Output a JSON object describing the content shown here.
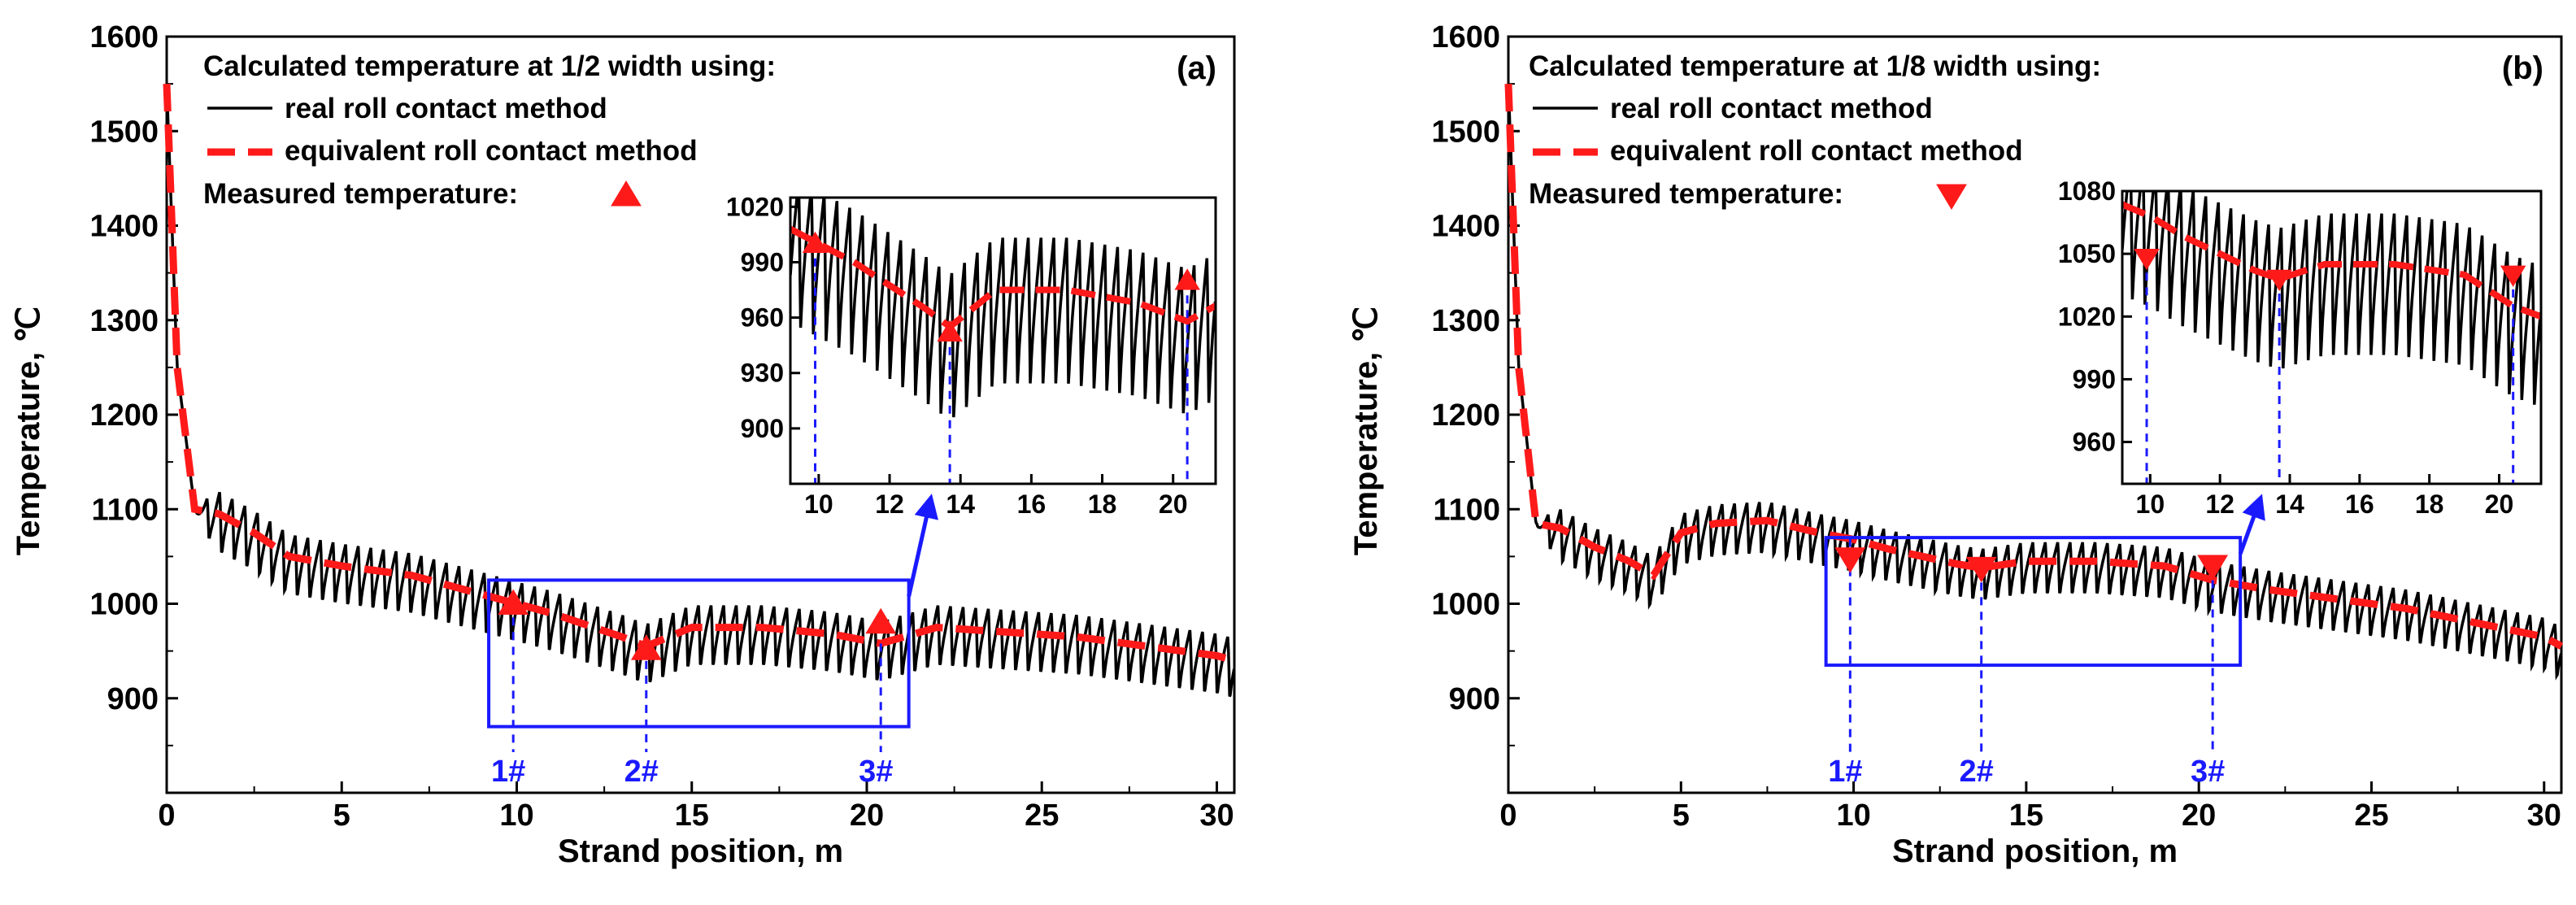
{
  "chart_data": [
    {
      "type": "line",
      "panel": "(a)",
      "xlabel": "Strand position, m",
      "ylabel": "Temperature, ℃",
      "xlim": [
        0,
        30.5
      ],
      "ylim": [
        800,
        1600
      ],
      "xticks": [
        0,
        5,
        10,
        15,
        20,
        25,
        30
      ],
      "yticks": [
        900,
        1000,
        1100,
        1200,
        1300,
        1400,
        1500,
        1600
      ],
      "legend": {
        "title": "Calculated temperature at 1/2 width using:",
        "real": "real roll contact method",
        "equivalent": "equivalent roll contact method",
        "measured": "Measured temperature:"
      },
      "series": [
        {
          "name": "real roll contact method",
          "color": "#000000",
          "style": "solid",
          "x": [
            0,
            0.3,
            0.8,
            1.5,
            2.5,
            3.5,
            5,
            7,
            9,
            11,
            13,
            13.7,
            15,
            17,
            19,
            20.4,
            22,
            24,
            26,
            28,
            30,
            30.5
          ],
          "y": [
            1550,
            1250,
            1100,
            1095,
            1075,
            1050,
            1040,
            1030,
            1010,
            990,
            965,
            955,
            975,
            975,
            968,
            958,
            975,
            970,
            965,
            955,
            945,
            940
          ],
          "oscillation_amplitude": 70
        },
        {
          "name": "equivalent roll contact method",
          "color": "#ff1a1a",
          "style": "dashed",
          "x": [
            0,
            0.3,
            0.8,
            1.5,
            2.5,
            3.5,
            5,
            7,
            9,
            11,
            13,
            13.7,
            15,
            17,
            19,
            20.4,
            22,
            24,
            26,
            28,
            30,
            30.5
          ],
          "y": [
            1550,
            1250,
            1100,
            1095,
            1075,
            1050,
            1040,
            1030,
            1010,
            990,
            965,
            955,
            975,
            975,
            968,
            958,
            975,
            970,
            965,
            955,
            945,
            940
          ]
        },
        {
          "name": "Measured temperature",
          "type": "scatter",
          "marker": "triangle-up",
          "color": "#ff1a1a",
          "x": [
            9.9,
            13.7,
            20.4
          ],
          "y": [
            1000,
            952,
            980
          ]
        }
      ],
      "annotations": [
        {
          "text": "1#",
          "x": 9.9
        },
        {
          "text": "2#",
          "x": 13.7
        },
        {
          "text": "3#",
          "x": 20.4
        }
      ],
      "zoom_box": {
        "xlim": [
          9.2,
          21.2
        ],
        "ylim": [
          870,
          1025
        ]
      },
      "inset": {
        "xlim": [
          9.2,
          21.2
        ],
        "ylim": [
          870,
          1025
        ],
        "xticks": [
          10,
          12,
          14,
          16,
          18,
          20
        ],
        "yticks": [
          900,
          930,
          960,
          990,
          1020
        ]
      }
    },
    {
      "type": "line",
      "panel": "(b)",
      "xlabel": "Strand position, m",
      "ylabel": "Temperature, ℃",
      "xlim": [
        0,
        30.5
      ],
      "ylim": [
        800,
        1600
      ],
      "xticks": [
        0,
        5,
        10,
        15,
        20,
        25,
        30
      ],
      "yticks": [
        900,
        1000,
        1100,
        1200,
        1300,
        1400,
        1500,
        1600
      ],
      "legend": {
        "title": "Calculated temperature at 1/8 width using:",
        "real": "real roll contact method",
        "equivalent": "equivalent roll contact method",
        "measured": "Measured temperature:"
      },
      "series": [
        {
          "name": "real roll contact method",
          "color": "#000000",
          "style": "solid",
          "x": [
            0,
            0.3,
            0.8,
            1.5,
            2.5,
            3.5,
            4.2,
            5,
            6,
            7.5,
            9,
            10,
            11,
            13,
            13.7,
            15,
            17,
            19,
            20.4,
            22,
            24,
            26,
            28,
            30,
            30.5
          ],
          "y": [
            1550,
            1250,
            1085,
            1080,
            1060,
            1045,
            1030,
            1075,
            1085,
            1088,
            1075,
            1068,
            1058,
            1042,
            1038,
            1045,
            1045,
            1040,
            1025,
            1015,
            1005,
            995,
            980,
            965,
            955
          ],
          "oscillation_amplitude": 60
        },
        {
          "name": "equivalent roll contact method",
          "color": "#ff1a1a",
          "style": "dashed",
          "x": [
            0,
            0.3,
            0.8,
            1.5,
            2.5,
            3.5,
            4.2,
            5,
            6,
            7.5,
            9,
            10,
            11,
            13,
            13.7,
            15,
            17,
            19,
            20.4,
            22,
            24,
            26,
            28,
            30,
            30.5
          ],
          "y": [
            1550,
            1250,
            1085,
            1080,
            1060,
            1045,
            1030,
            1075,
            1085,
            1088,
            1075,
            1068,
            1058,
            1042,
            1038,
            1045,
            1045,
            1040,
            1025,
            1015,
            1005,
            995,
            980,
            965,
            955
          ]
        },
        {
          "name": "Measured temperature",
          "type": "scatter",
          "marker": "triangle-down",
          "color": "#ff1a1a",
          "x": [
            9.9,
            13.7,
            20.4
          ],
          "y": [
            1048,
            1038,
            1040
          ]
        }
      ],
      "annotations": [
        {
          "text": "1#",
          "x": 9.9
        },
        {
          "text": "2#",
          "x": 13.7
        },
        {
          "text": "3#",
          "x": 20.4
        }
      ],
      "zoom_box": {
        "xlim": [
          9.2,
          21.2
        ],
        "ylim": [
          935,
          1070
        ]
      },
      "inset": {
        "xlim": [
          9.2,
          21.2
        ],
        "ylim": [
          940,
          1080
        ],
        "xticks": [
          10,
          12,
          14,
          16,
          18,
          20
        ],
        "yticks": [
          960,
          990,
          1020,
          1050,
          1080
        ]
      }
    }
  ]
}
